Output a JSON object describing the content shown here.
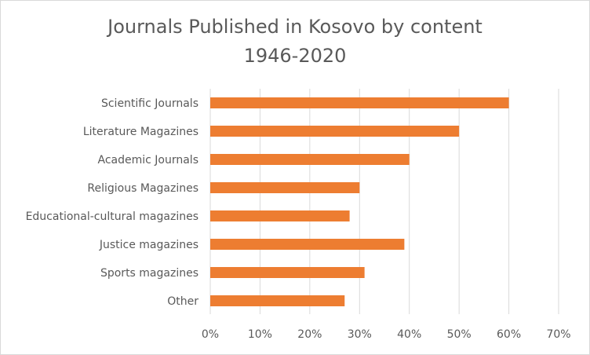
{
  "chart_data": {
    "type": "bar",
    "orientation": "horizontal",
    "title_line1": "Journals Published in Kosovo by content",
    "title_line2": "1946-2020",
    "categories": [
      "Scientific Journals",
      "Literature Magazines",
      "Academic Journals",
      "Religious Magazines",
      "Educational-cultural magazines",
      "Justice magazines",
      "Sports magazines",
      "Other"
    ],
    "values": [
      0.6,
      0.5,
      0.4,
      0.3,
      0.28,
      0.39,
      0.31,
      0.27
    ],
    "xlim": [
      0,
      0.7
    ],
    "x_ticks": [
      0,
      0.1,
      0.2,
      0.3,
      0.4,
      0.5,
      0.6,
      0.7
    ],
    "x_tick_labels": [
      "0%",
      "10%",
      "20%",
      "30%",
      "40%",
      "50%",
      "60%",
      "70%"
    ],
    "grid": "vertical",
    "bar_color": "#ED7D31",
    "grid_color": "#D9D9D9"
  }
}
